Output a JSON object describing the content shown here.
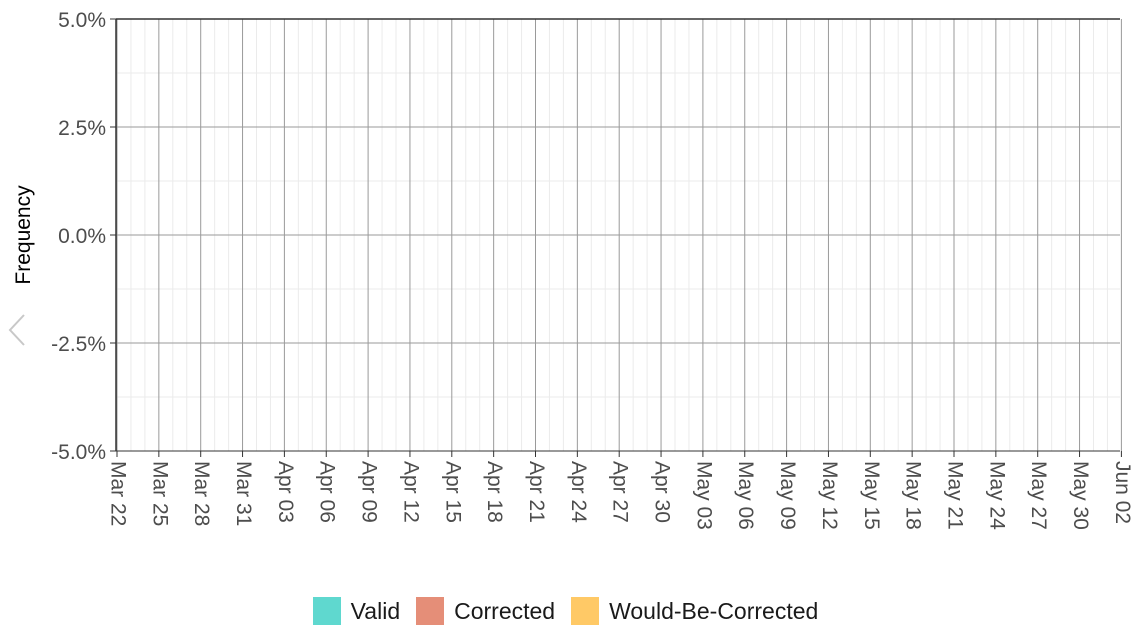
{
  "chart_data": {
    "type": "bar",
    "title": "",
    "xlabel": "",
    "ylabel": "Frequency",
    "ylim": [
      -5.0,
      5.0
    ],
    "y_ticks": [
      "5.0%",
      "2.5%",
      "0.0%",
      "-2.5%",
      "-5.0%"
    ],
    "x_ticks": [
      "Mar 22",
      "Mar 25",
      "Mar 28",
      "Mar 31",
      "Apr 03",
      "Apr 06",
      "Apr 09",
      "Apr 12",
      "Apr 15",
      "Apr 18",
      "Apr 21",
      "Apr 24",
      "Apr 27",
      "Apr 30",
      "May 03",
      "May 06",
      "May 09",
      "May 12",
      "May 15",
      "May 18",
      "May 21",
      "May 24",
      "May 27",
      "May 30",
      "Jun 02"
    ],
    "series": [
      {
        "name": "Valid",
        "color": "#5fd8cf",
        "values": []
      },
      {
        "name": "Corrected",
        "color": "#e58e78",
        "values": []
      },
      {
        "name": "Would-Be-Corrected",
        "color": "#ffc966",
        "values": []
      }
    ],
    "legend_position": "bottom",
    "grid": true
  },
  "nav": {
    "prev_icon": "chevron-left-icon"
  }
}
